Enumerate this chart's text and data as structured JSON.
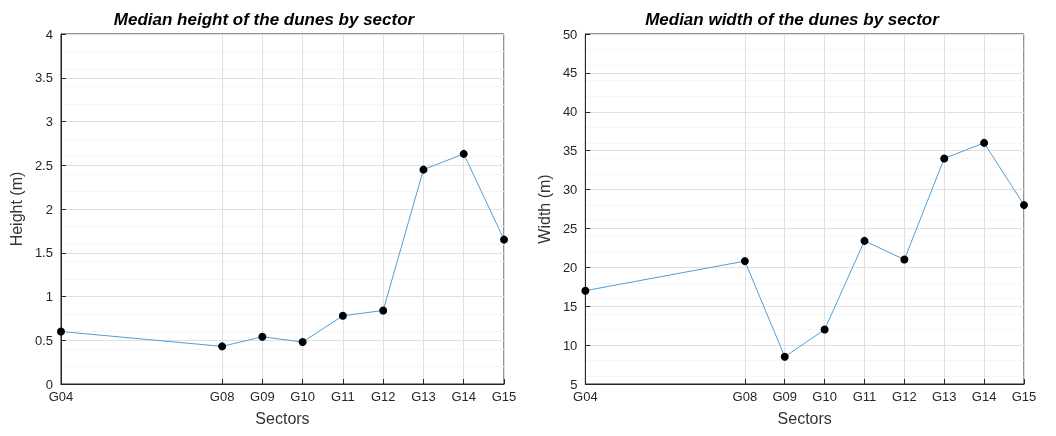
{
  "chart_data": [
    {
      "type": "line",
      "title": "Median height of the dunes by sector",
      "xlabel": "Sectors",
      "ylabel": "Height (m)",
      "categories": [
        "G04",
        null,
        null,
        null,
        "G08",
        "G09",
        "G10",
        "G11",
        "G12",
        "G13",
        "G14",
        "G15"
      ],
      "series": [
        {
          "color": "#4d9fd8",
          "values": [
            0.6,
            null,
            null,
            null,
            0.43,
            0.54,
            0.48,
            0.78,
            0.84,
            2.45,
            2.63,
            1.65
          ]
        }
      ],
      "ylim": [
        0,
        4
      ],
      "yticks": [
        0,
        0.5,
        1,
        1.5,
        2,
        2.5,
        3,
        3.5,
        4
      ],
      "grid": true,
      "marker": "circle",
      "line_style": "solid"
    },
    {
      "type": "line",
      "title": "Median width of the dunes by sector",
      "xlabel": "Sectors",
      "ylabel": "Width (m)",
      "categories": [
        "G04",
        null,
        null,
        null,
        "G08",
        "G09",
        "G10",
        "G11",
        "G12",
        "G13",
        "G14",
        "G15"
      ],
      "series": [
        {
          "color": "#4d9fd8",
          "values": [
            17,
            null,
            null,
            null,
            20.8,
            8.5,
            12,
            23.4,
            21,
            34,
            36,
            28
          ]
        }
      ],
      "ylim": [
        5,
        50
      ],
      "yticks": [
        5,
        10,
        15,
        20,
        25,
        30,
        35,
        40,
        45,
        50
      ],
      "grid": true,
      "marker": "circle",
      "line_style": "solid"
    }
  ]
}
